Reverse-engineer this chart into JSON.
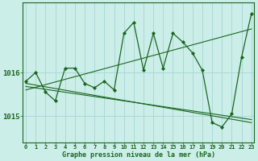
{
  "title": "Graphe pression niveau de la mer (hPa)",
  "background_color": "#cceee8",
  "grid_color": "#aad8d8",
  "line_color": "#1a6620",
  "x_ticks": [
    0,
    1,
    2,
    3,
    4,
    5,
    6,
    7,
    8,
    9,
    10,
    11,
    12,
    13,
    14,
    15,
    16,
    17,
    18,
    19,
    20,
    21,
    22,
    23
  ],
  "y_ticks": [
    1015,
    1016
  ],
  "ylim": [
    1014.4,
    1017.6
  ],
  "xlim": [
    -0.3,
    23.3
  ],
  "series1_x": [
    0,
    1,
    2,
    3,
    4,
    5,
    6,
    7,
    8,
    9,
    10,
    11,
    12,
    13,
    14,
    15,
    16,
    17,
    18,
    19,
    20,
    21,
    22,
    23
  ],
  "series1_y": [
    1015.8,
    1016.0,
    1015.55,
    1015.35,
    1016.1,
    1016.1,
    1015.75,
    1015.65,
    1015.8,
    1015.6,
    1016.9,
    1017.15,
    1016.05,
    1016.9,
    1016.1,
    1016.9,
    1016.7,
    1016.45,
    1016.05,
    1014.85,
    1014.75,
    1015.05,
    1016.35,
    1017.35
  ],
  "trend1_x": [
    0,
    23
  ],
  "trend1_y": [
    1015.6,
    1017.0
  ],
  "trend2_x": [
    0,
    23
  ],
  "trend2_y": [
    1015.75,
    1014.85
  ],
  "trend3_x": [
    0,
    23
  ],
  "trend3_y": [
    1015.68,
    1014.92
  ]
}
